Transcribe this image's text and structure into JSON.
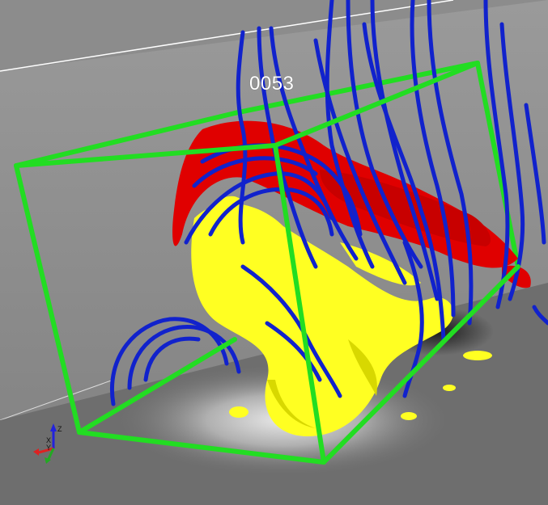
{
  "frame_counter": "0053",
  "axes": {
    "z": "Z",
    "x": "X",
    "y": "Y"
  },
  "colors": {
    "background_wall": "#8f8f8f",
    "floor": "#6e6e6e",
    "bounding_box": "#22dd22",
    "field_lines": "#1122cc",
    "isosurface_red": "#e00000",
    "isosurface_yellow": "#ffff22",
    "axis_x": "#dd2222",
    "axis_y": "#22aa22",
    "axis_z": "#2222dd"
  },
  "objects": [
    "background-wall",
    "floor-plane",
    "green-bounding-box",
    "blue-magnetic-field-lines",
    "red-isosurface",
    "yellow-isosurface",
    "orientation-axes-triad"
  ]
}
